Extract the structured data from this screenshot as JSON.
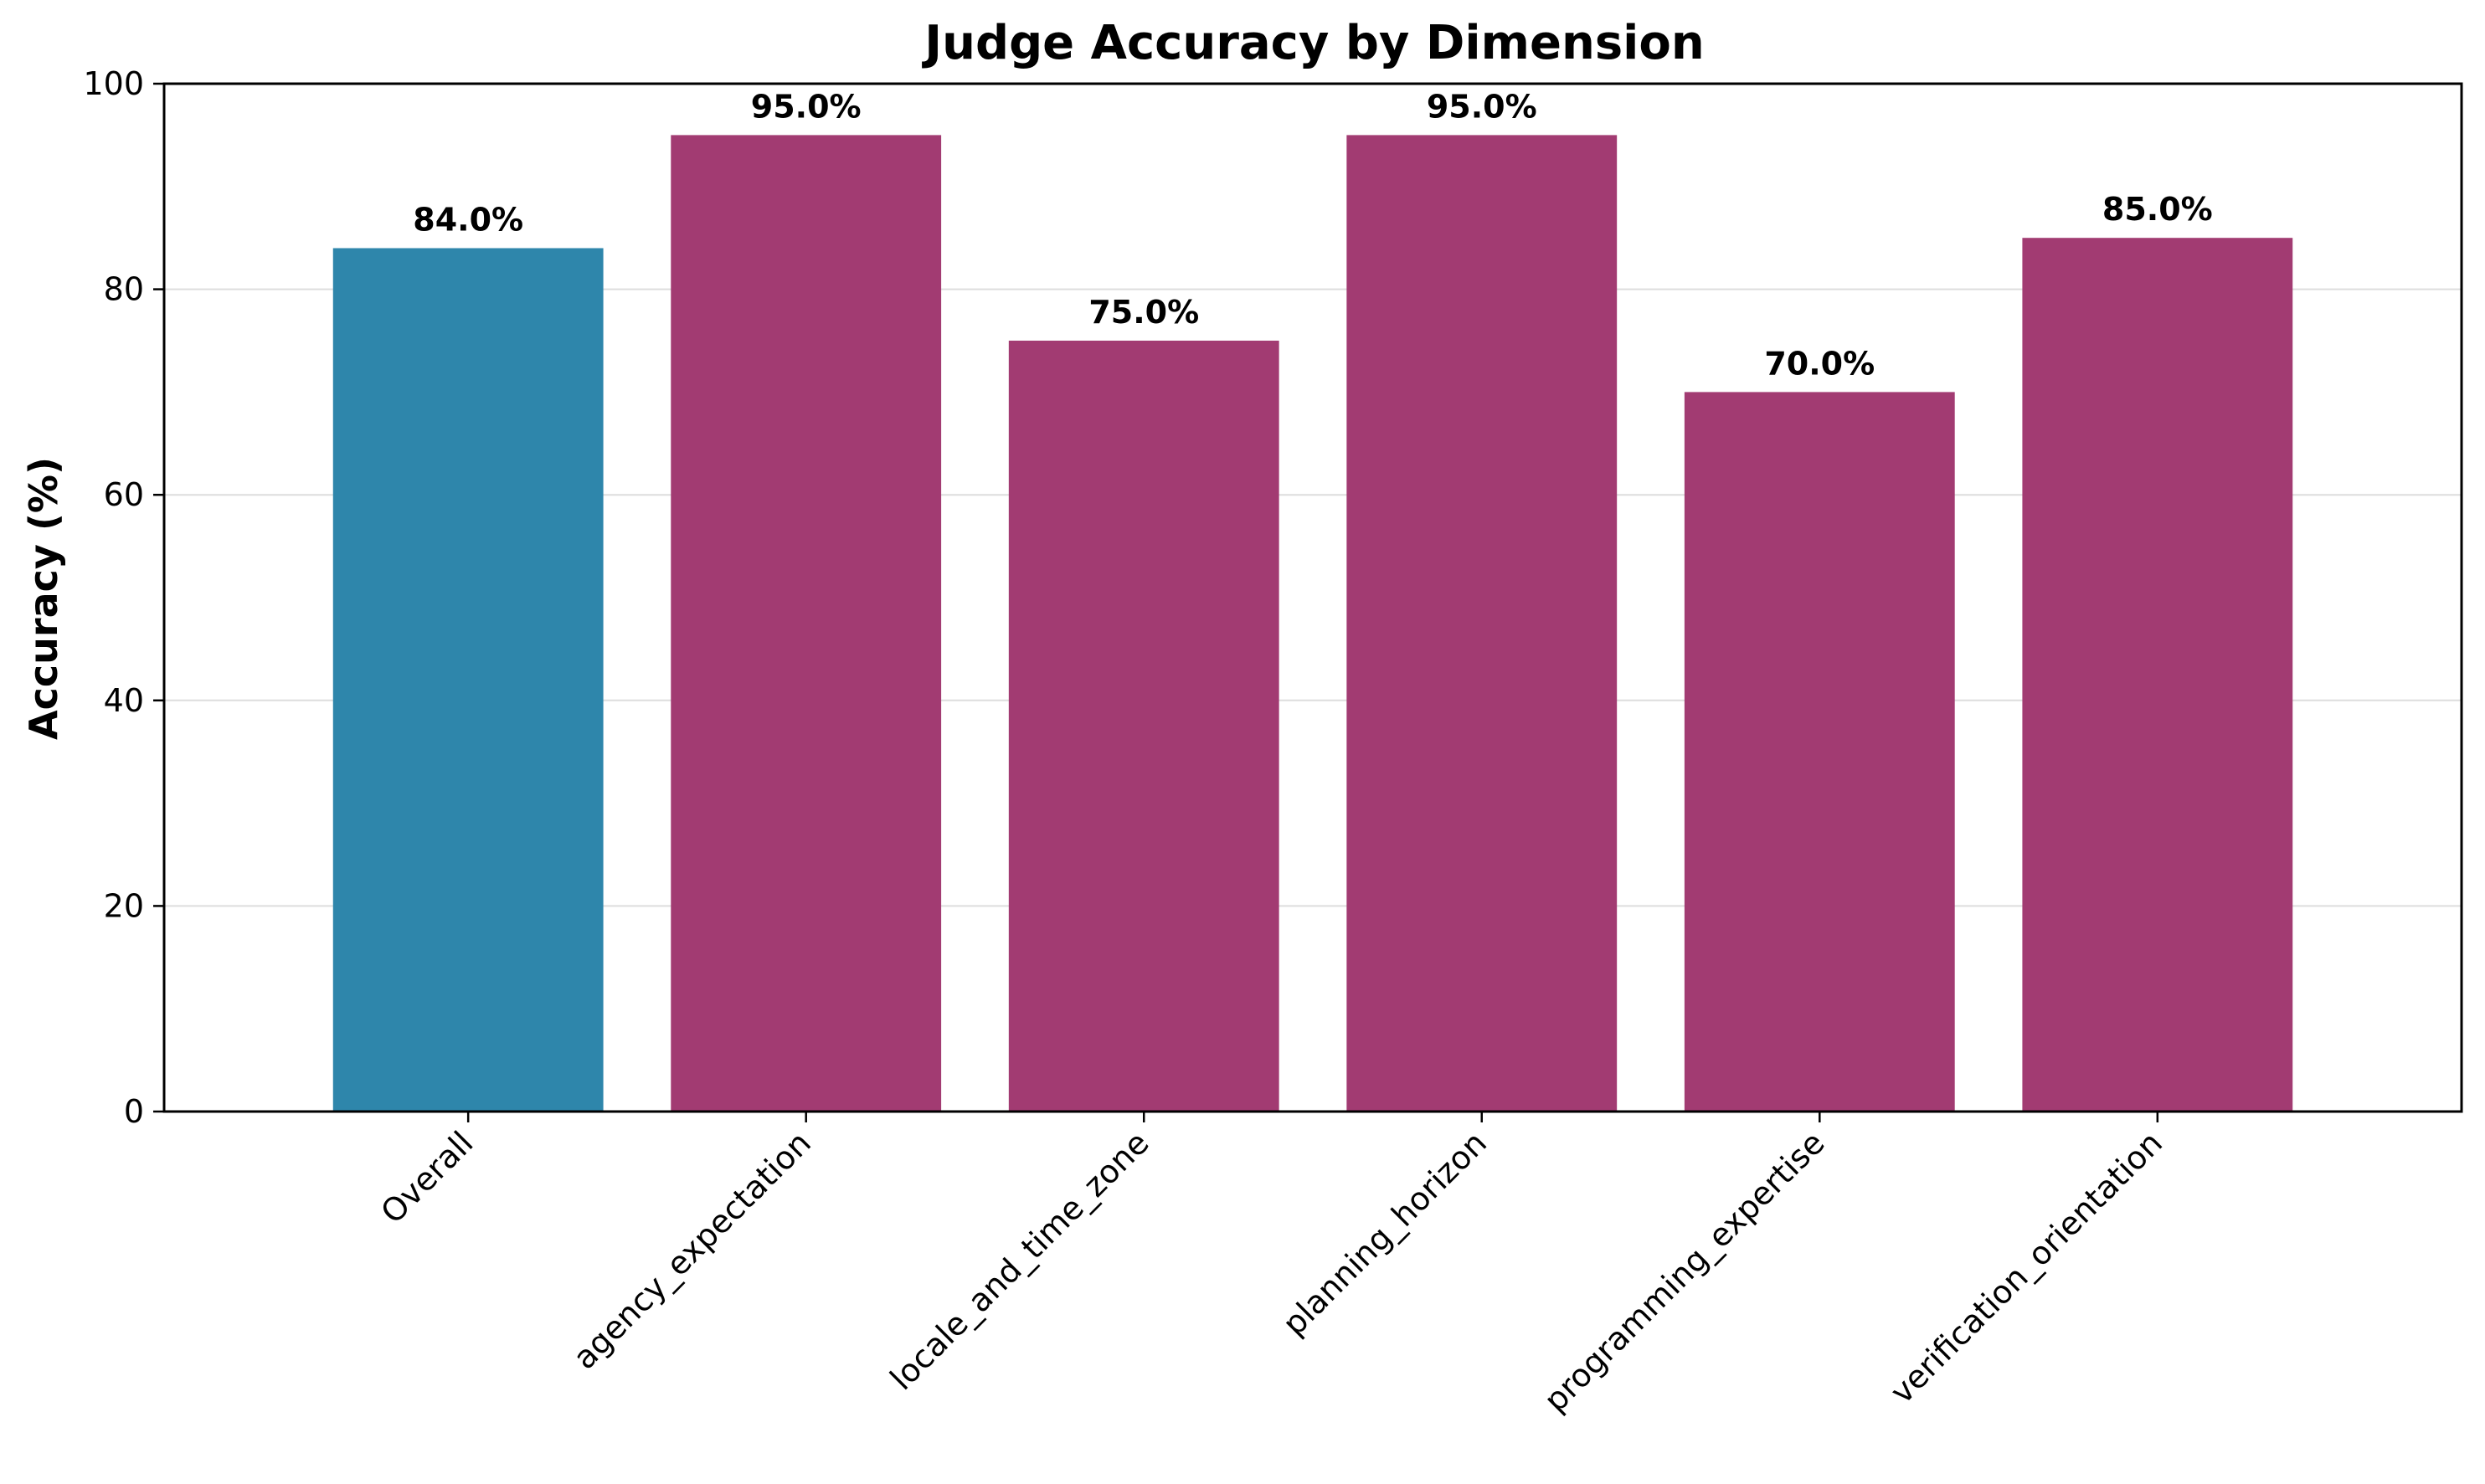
{
  "chart_data": {
    "type": "bar",
    "title": "Judge Accuracy by Dimension",
    "xlabel": "",
    "ylabel": "Accuracy (%)",
    "ylim": [
      0,
      100
    ],
    "yticks": [
      0,
      20,
      40,
      60,
      80,
      100
    ],
    "grid": "horizontal",
    "legend": "none",
    "categories": [
      "Overall",
      "agency_expectation",
      "locale_and_time_zone",
      "planning_horizon",
      "programming_expertise",
      "verification_orientation"
    ],
    "values": [
      84.0,
      95.0,
      75.0,
      95.0,
      70.0,
      85.0
    ],
    "value_labels": [
      "84.0%",
      "95.0%",
      "75.0%",
      "95.0%",
      "70.0%",
      "85.0%"
    ],
    "bar_colors": [
      "#2e86ab",
      "#a23b72",
      "#a23b72",
      "#a23b72",
      "#a23b72",
      "#a23b72"
    ]
  }
}
